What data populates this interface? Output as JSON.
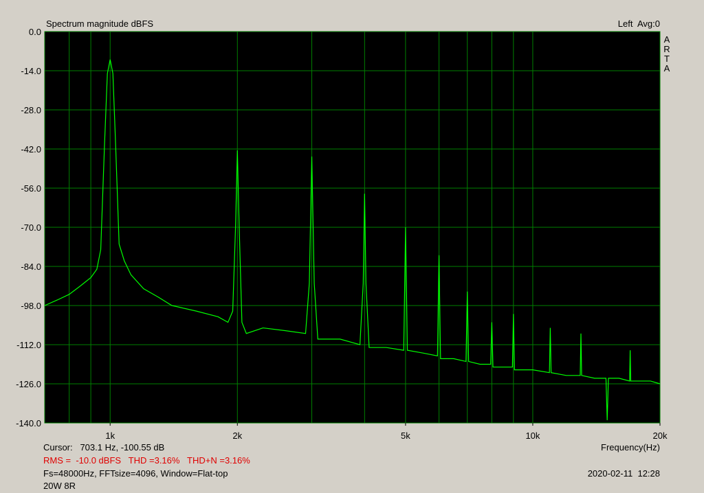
{
  "chart_data": {
    "type": "line",
    "title": "Spectrum magnitude dBFS",
    "channel_label": "Left  Avg:0",
    "side_label": "ARTA",
    "x_label": "Frequency(Hz)",
    "cursor_text": "Cursor:   703.1 Hz, -100.55 dB",
    "measurement_text": "RMS =  -10.0 dBFS   THD =3.16%   THD+N =3.16%",
    "settings_text": "Fs=48000Hz, FFTsize=4096, Window=Flat-top",
    "timestamp": "2020-02-11  12:28",
    "note": "20W 8R",
    "x_log": true,
    "grid": true,
    "xlim": [
      700,
      20000
    ],
    "ylim": [
      -140,
      0
    ],
    "xticks": [
      {
        "value": 1000,
        "label": "1k"
      },
      {
        "value": 2000,
        "label": "2k"
      },
      {
        "value": 5000,
        "label": "5k"
      },
      {
        "value": 10000,
        "label": "10k"
      },
      {
        "value": 20000,
        "label": "20k"
      }
    ],
    "x_gridlines": [
      800,
      900,
      1000,
      2000,
      3000,
      4000,
      5000,
      6000,
      7000,
      8000,
      9000,
      10000
    ],
    "yticks": [
      {
        "value": 0,
        "label": "0.0"
      },
      {
        "value": -14,
        "label": "-14.0"
      },
      {
        "value": -28,
        "label": "-28.0"
      },
      {
        "value": -42,
        "label": "-42.0"
      },
      {
        "value": -56,
        "label": "-56.0"
      },
      {
        "value": -70,
        "label": "-70.0"
      },
      {
        "value": -84,
        "label": "-84.0"
      },
      {
        "value": -98,
        "label": "-98.0"
      },
      {
        "value": -112,
        "label": "-112.0"
      },
      {
        "value": -126,
        "label": "-126.0"
      },
      {
        "value": -140,
        "label": "-140.0"
      }
    ],
    "color": "#00ff00",
    "x": [
      700,
      750,
      800,
      850,
      900,
      930,
      950,
      970,
      985,
      1000,
      1015,
      1030,
      1050,
      1080,
      1120,
      1200,
      1300,
      1400,
      1600,
      1800,
      1900,
      1950,
      1980,
      2000,
      2020,
      2050,
      2100,
      2300,
      2600,
      2900,
      2960,
      3000,
      3040,
      3100,
      3500,
      3900,
      3970,
      4000,
      4030,
      4100,
      4500,
      4950,
      5000,
      5050,
      5500,
      5950,
      6000,
      6050,
      6500,
      6950,
      7000,
      7050,
      7500,
      7950,
      8000,
      8050,
      8500,
      8950,
      9000,
      9050,
      10000,
      10950,
      11000,
      11050,
      12000,
      12950,
      13000,
      13050,
      14000,
      14900,
      15000,
      15100,
      16000,
      16950,
      17000,
      17050,
      18000,
      19000,
      20000
    ],
    "values": [
      -98,
      -96,
      -94,
      -91,
      -88,
      -85,
      -78,
      -40,
      -15,
      -10,
      -15,
      -40,
      -76,
      -82,
      -87,
      -92,
      -95,
      -98,
      -100,
      -102,
      -104,
      -100,
      -70,
      -42.5,
      -70,
      -104,
      -108,
      -106,
      -107,
      -108,
      -90,
      -44.7,
      -90,
      -110,
      -110,
      -112,
      -90,
      -58,
      -90,
      -113,
      -113,
      -114,
      -70,
      -114,
      -115,
      -116,
      -80,
      -117,
      -117,
      -118,
      -93,
      -118,
      -119,
      -119,
      -104,
      -120,
      -120,
      -120,
      -101,
      -121,
      -121,
      -122,
      -106,
      -122,
      -123,
      -123,
      -108,
      -123,
      -124,
      -124,
      -139,
      -124,
      -124,
      -125,
      -114,
      -125,
      -125,
      -125,
      -126
    ]
  }
}
